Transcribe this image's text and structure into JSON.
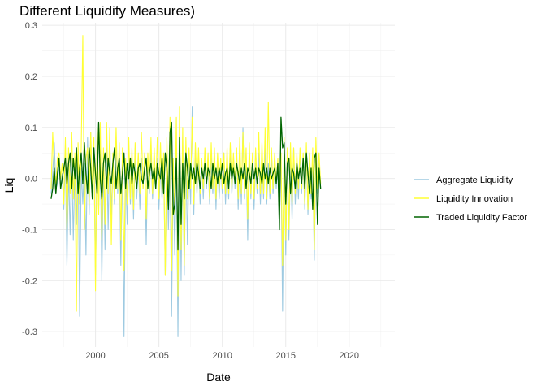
{
  "chart_data": {
    "type": "line",
    "title": "Different Liquidity Measures)",
    "xlabel": "Date",
    "ylabel": "Liq",
    "xlim": [
      1995.8,
      2023.6
    ],
    "ylim": [
      -0.33,
      0.305
    ],
    "x_ticks": [
      2000,
      2005,
      2010,
      2015,
      2020
    ],
    "x_tick_labels": [
      "2000",
      "2005",
      "2010",
      "2015",
      "2020"
    ],
    "y_ticks": [
      -0.3,
      -0.2,
      -0.1,
      0.0,
      0.1,
      0.2,
      0.3
    ],
    "y_tick_labels": [
      "-0.3",
      "-0.2",
      "-0.1",
      "0.0",
      "0.1",
      "0.2",
      "0.3"
    ],
    "grid": true,
    "legend_position": "right",
    "x_start": 1996.5,
    "x_step": 0.125,
    "series": [
      {
        "name": "Aggregate Liquidity",
        "color": "#9ecae1",
        "values": [
          -0.03,
          0.01,
          0.07,
          -0.02,
          -0.01,
          0.03,
          -0.02,
          0.01,
          -0.06,
          0.05,
          -0.17,
          0.02,
          -0.11,
          0.04,
          -0.12,
          0.03,
          -0.09,
          0.06,
          -0.27,
          0.02,
          -0.05,
          0.03,
          -0.15,
          0.08,
          -0.07,
          0.09,
          -0.04,
          0.06,
          -0.19,
          0.03,
          -0.06,
          0.07,
          -0.2,
          0.04,
          -0.14,
          0.06,
          -0.1,
          0.08,
          -0.07,
          0.03,
          -0.05,
          0.07,
          -0.03,
          0.05,
          -0.17,
          0.04,
          -0.31,
          0.02,
          -0.09,
          0.03,
          -0.05,
          0.04,
          -0.08,
          0.06,
          -0.04,
          0.03,
          -0.06,
          0.04,
          -0.02,
          0.05,
          -0.13,
          0.04,
          -0.03,
          0.05,
          -0.04,
          0.03,
          -0.02,
          0.04,
          -0.06,
          0.02,
          -0.04,
          0.03,
          -0.19,
          0.05,
          -0.1,
          0.04,
          -0.27,
          0.02,
          -0.15,
          0.06,
          -0.31,
          0.1,
          -0.2,
          0.08,
          -0.19,
          0.06,
          -0.13,
          0.04,
          -0.05,
          0.14,
          -0.07,
          0.05,
          -0.03,
          0.04,
          -0.05,
          0.03,
          -0.04,
          0.05,
          -0.02,
          0.03,
          -0.05,
          0.04,
          -0.03,
          0.05,
          -0.06,
          0.04,
          -0.04,
          0.03,
          -0.03,
          0.05,
          -0.05,
          0.04,
          -0.04,
          0.06,
          -0.03,
          0.03,
          -0.02,
          0.05,
          -0.06,
          0.04,
          -0.05,
          0.1,
          -0.04,
          0.05,
          -0.12,
          0.06,
          -0.04,
          0.04,
          -0.06,
          0.03,
          -0.03,
          0.05,
          -0.05,
          0.04,
          -0.04,
          0.06,
          -0.05,
          0.03,
          -0.04,
          0.05,
          -0.03,
          0.04,
          -0.02,
          0.03,
          -0.04,
          0.04,
          -0.26,
          0.06,
          -0.15,
          0.05,
          -0.12,
          0.04,
          -0.08,
          0.06,
          -0.05,
          0.03,
          -0.04,
          0.05,
          -0.03,
          0.04,
          -0.06,
          0.05,
          -0.07,
          0.03,
          -0.04,
          0.04,
          -0.16,
          0.05,
          -0.03,
          0.04,
          -0.02
        ]
      },
      {
        "name": "Liquidity Innovation",
        "color": "#ffff33",
        "values": [
          -0.02,
          0.09,
          0.02,
          -0.01,
          0.04,
          0.05,
          0.0,
          0.03,
          -0.05,
          0.08,
          -0.1,
          0.06,
          -0.03,
          0.09,
          -0.04,
          0.05,
          -0.26,
          0.07,
          -0.05,
          0.06,
          0.28,
          -0.1,
          0.04,
          0.06,
          -0.05,
          0.09,
          -0.03,
          0.08,
          -0.22,
          0.1,
          -0.07,
          0.11,
          -0.12,
          0.06,
          -0.09,
          0.11,
          -0.03,
          0.1,
          -0.13,
          0.05,
          -0.04,
          0.1,
          -0.02,
          0.07,
          -0.12,
          0.06,
          -0.18,
          0.04,
          -0.05,
          0.08,
          -0.04,
          0.06,
          -0.06,
          0.07,
          -0.02,
          0.05,
          -0.03,
          0.09,
          -0.02,
          0.05,
          -0.08,
          0.05,
          -0.02,
          0.08,
          -0.03,
          0.06,
          -0.02,
          0.08,
          -0.04,
          0.07,
          -0.03,
          0.05,
          -0.19,
          0.08,
          -0.05,
          0.12,
          -0.18,
          0.04,
          -0.07,
          0.12,
          -0.23,
          0.14,
          -0.14,
          0.1,
          -0.17,
          0.08,
          -0.04,
          0.06,
          -0.02,
          0.12,
          -0.05,
          0.07,
          -0.02,
          0.06,
          -0.03,
          0.04,
          -0.02,
          0.06,
          -0.01,
          0.05,
          -0.04,
          0.07,
          -0.02,
          0.06,
          -0.04,
          0.05,
          -0.02,
          0.04,
          -0.02,
          0.05,
          -0.03,
          0.06,
          -0.03,
          0.07,
          -0.02,
          0.05,
          -0.01,
          0.06,
          -0.04,
          0.08,
          -0.03,
          0.09,
          -0.03,
          0.06,
          -0.08,
          0.07,
          -0.03,
          0.05,
          -0.04,
          0.06,
          -0.02,
          0.09,
          -0.03,
          0.07,
          -0.03,
          0.1,
          -0.04,
          0.15,
          -0.03,
          0.06,
          -0.02,
          0.05,
          -0.01,
          0.04,
          -0.03,
          0.05,
          -0.17,
          0.08,
          -0.12,
          0.06,
          -0.1,
          0.07,
          -0.05,
          0.06,
          -0.03,
          0.05,
          -0.02,
          0.06,
          -0.02,
          0.05,
          -0.05,
          0.07,
          -0.06,
          0.05,
          -0.03,
          0.06,
          -0.14,
          0.08,
          -0.02,
          0.05,
          -0.01
        ]
      },
      {
        "name": "Traded Liquidity Factor",
        "color": "#006400",
        "values": [
          -0.04,
          -0.02,
          0.02,
          -0.03,
          0.01,
          0.04,
          -0.02,
          0.0,
          0.02,
          0.04,
          -0.01,
          0.03,
          0.05,
          -0.02,
          0.04,
          0.0,
          0.06,
          -0.03,
          0.02,
          0.05,
          -0.01,
          0.07,
          0.01,
          -0.03,
          0.06,
          0.02,
          -0.04,
          0.06,
          0.01,
          -0.03,
          0.11,
          0.0,
          -0.04,
          0.03,
          0.05,
          -0.02,
          0.04,
          0.01,
          -0.01,
          0.03,
          0.06,
          -0.02,
          0.02,
          0.04,
          -0.03,
          0.01,
          0.05,
          -0.02,
          0.03,
          0.0,
          0.04,
          -0.01,
          0.03,
          0.01,
          -0.02,
          0.02,
          0.03,
          0.0,
          -0.01,
          0.02,
          0.04,
          -0.02,
          0.01,
          0.03,
          0.0,
          0.02,
          -0.02,
          0.03,
          0.01,
          0.0,
          0.04,
          -0.03,
          0.05,
          0.02,
          -0.06,
          0.09,
          0.11,
          -0.07,
          -0.05,
          0.04,
          -0.14,
          0.08,
          -0.09,
          0.03,
          -0.04,
          0.05,
          0.02,
          -0.02,
          0.03,
          0.0,
          0.02,
          -0.01,
          0.03,
          0.01,
          -0.02,
          0.02,
          0.0,
          0.03,
          -0.01,
          0.02,
          0.01,
          -0.02,
          0.03,
          0.0,
          0.02,
          -0.01,
          0.02,
          0.0,
          0.03,
          -0.01,
          0.01,
          0.02,
          -0.02,
          0.03,
          0.0,
          0.02,
          -0.01,
          0.03,
          0.01,
          -0.01,
          0.02,
          0.0,
          0.03,
          -0.02,
          0.02,
          0.01,
          -0.01,
          0.03,
          0.0,
          0.02,
          -0.01,
          0.02,
          0.01,
          -0.01,
          0.03,
          0.0,
          0.02,
          -0.01,
          0.02,
          0.0,
          0.01,
          0.02,
          -0.01,
          0.03,
          -0.1,
          0.12,
          0.06,
          0.07,
          -0.05,
          0.03,
          0.04,
          -0.03,
          0.02,
          0.01,
          -0.02,
          0.03,
          0.0,
          0.02,
          -0.01,
          0.04,
          -0.02,
          0.05,
          0.01,
          -0.03,
          0.02,
          -0.06,
          0.04,
          0.05,
          -0.09,
          0.02,
          -0.02
        ]
      }
    ]
  }
}
